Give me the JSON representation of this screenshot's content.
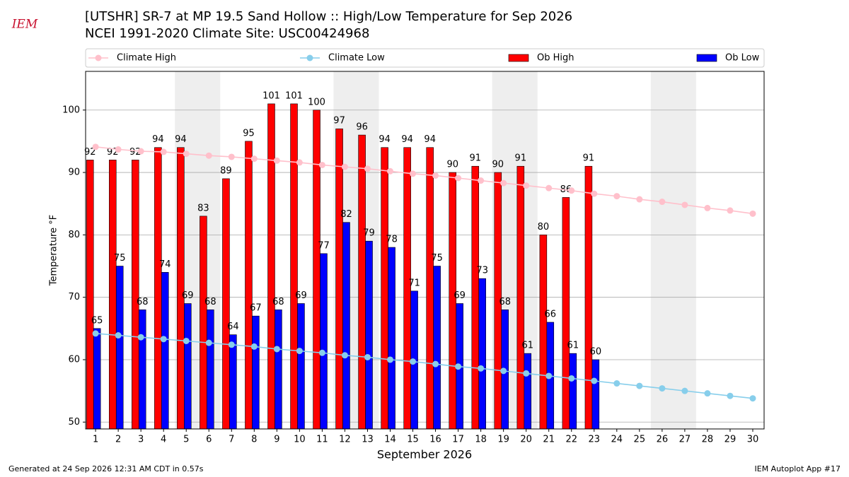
{
  "chart_data": {
    "type": "bar",
    "logo": "IEM",
    "title": "[UTSHR] SR-7 at MP 19.5 Sand Hollow  :: High/Low Temperature for Sep 2026",
    "subtitle": "NCEI 1991-2020 Climate Site: USC00424968",
    "ylabel": "Temperature °F",
    "xlabel": "September 2026",
    "footer_left": "Generated at 24 Sep 2026 12:31 AM CDT in 0.57s",
    "footer_right": "IEM Autoplot App #17",
    "x": [
      1,
      2,
      3,
      4,
      5,
      6,
      7,
      8,
      9,
      10,
      11,
      12,
      13,
      14,
      15,
      16,
      17,
      18,
      19,
      20,
      21,
      22,
      23,
      24,
      25,
      26,
      27,
      28,
      29,
      30
    ],
    "xlim": [
      0.56,
      30.5
    ],
    "xticks": [
      1,
      2,
      3,
      4,
      5,
      6,
      7,
      8,
      9,
      10,
      11,
      12,
      13,
      14,
      15,
      16,
      17,
      18,
      19,
      20,
      21,
      22,
      23,
      24,
      25,
      26,
      27,
      28,
      29,
      30
    ],
    "ylim": [
      48.9,
      106.2
    ],
    "yticks": [
      50,
      60,
      70,
      80,
      90,
      100
    ],
    "grid": true,
    "highlight_spans": [
      [
        4.5,
        6.5
      ],
      [
        11.5,
        13.5
      ],
      [
        18.5,
        20.5
      ],
      [
        25.5,
        27.5
      ]
    ],
    "series": [
      {
        "name": "Climate High",
        "kind": "line",
        "color": "#ffc0cb",
        "values": [
          94.1,
          93.7,
          93.4,
          93.3,
          93.0,
          92.7,
          92.5,
          92.2,
          91.9,
          91.6,
          91.2,
          90.9,
          90.6,
          90.2,
          89.8,
          89.5,
          89.1,
          88.7,
          88.3,
          87.9,
          87.5,
          87.1,
          86.6,
          86.2,
          85.7,
          85.3,
          84.8,
          84.3,
          83.9,
          83.4
        ]
      },
      {
        "name": "Climate Low",
        "kind": "line",
        "color": "#87ceeb",
        "values": [
          64.2,
          63.9,
          63.6,
          63.3,
          63.0,
          62.7,
          62.4,
          62.1,
          61.7,
          61.4,
          61.1,
          60.7,
          60.4,
          60.0,
          59.7,
          59.3,
          58.9,
          58.6,
          58.2,
          57.8,
          57.4,
          57.0,
          56.6,
          56.2,
          55.8,
          55.4,
          55.0,
          54.6,
          54.2,
          53.8
        ]
      },
      {
        "name": "Ob High",
        "kind": "bar",
        "color": "#ff0000",
        "values": [
          92,
          92,
          92,
          94,
          94,
          83,
          89,
          95,
          101,
          101,
          100,
          97,
          96,
          94,
          94,
          94,
          90,
          91,
          90,
          91,
          80,
          86,
          91,
          null,
          null,
          null,
          null,
          null,
          null,
          null
        ]
      },
      {
        "name": "Ob Low",
        "kind": "bar",
        "color": "#0000ff",
        "values": [
          65,
          75,
          68,
          74,
          69,
          68,
          64,
          67,
          68,
          69,
          77,
          82,
          79,
          78,
          71,
          75,
          69,
          73,
          68,
          61,
          66,
          61,
          60,
          null,
          null,
          null,
          null,
          null,
          null,
          null
        ]
      }
    ]
  }
}
